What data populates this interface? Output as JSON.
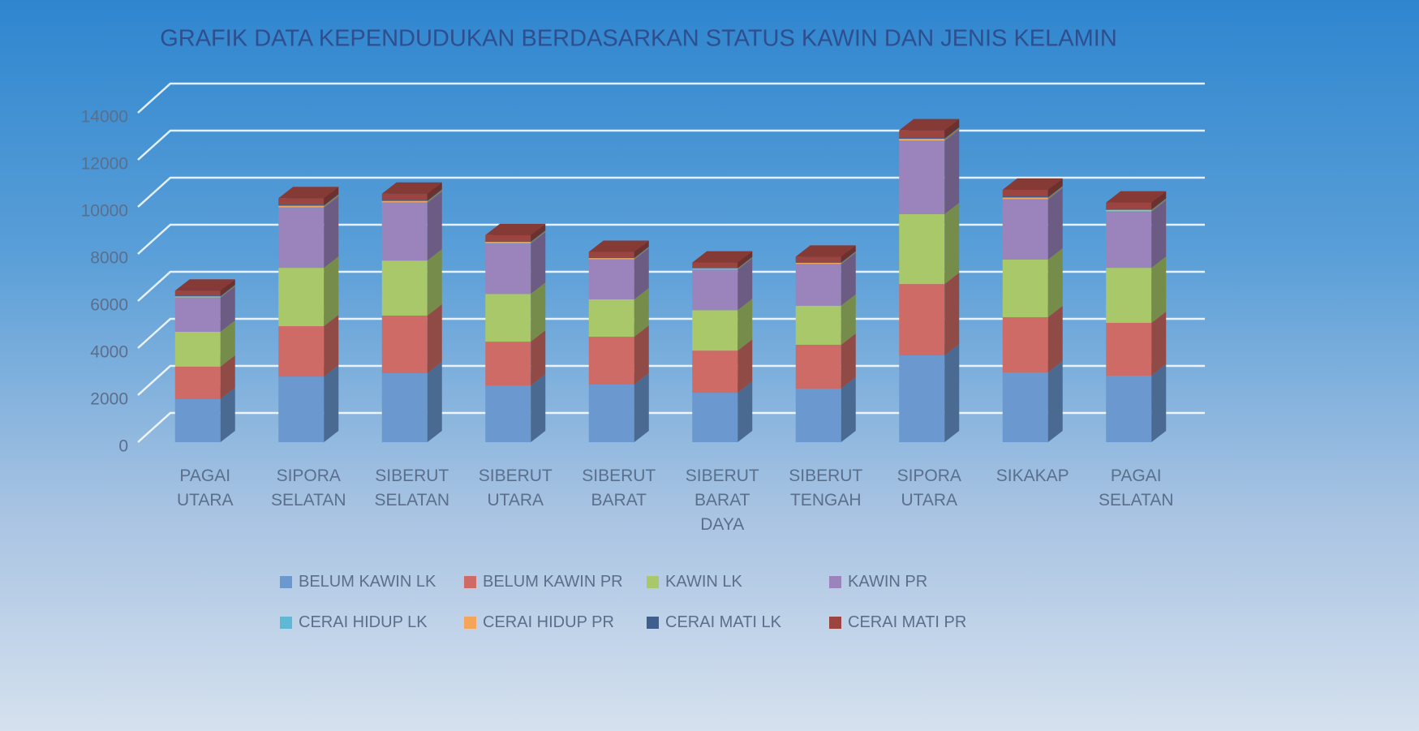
{
  "chart_data": {
    "type": "bar",
    "stacked": true,
    "title": "GRAFIK DATA KEPENDUDUKAN BERDASARKAN STATUS KAWIN DAN JENIS KELAMIN",
    "categories": [
      "PAGAI UTARA",
      "SIPORA SELATAN",
      "SIBERUT SELATAN",
      "SIBERUT UTARA",
      "SIBERUT BARAT",
      "SIBERUT BARAT DAYA",
      "SIBERUT TENGAH",
      "SIPORA UTARA",
      "SIKAKAP",
      "PAGAI SELATAN"
    ],
    "series": [
      {
        "name": "BELUM KAWIN LK",
        "color": "#6a98cf",
        "values": [
          1830,
          2790,
          2930,
          2410,
          2450,
          2100,
          2280,
          3690,
          2970,
          2830
        ]
      },
      {
        "name": "BELUM KAWIN PR",
        "color": "#cf6b66",
        "values": [
          1380,
          2140,
          2450,
          1860,
          2030,
          1790,
          1860,
          3030,
          2340,
          2240
        ]
      },
      {
        "name": "KAWIN LK",
        "color": "#a9c86a",
        "values": [
          1480,
          2480,
          2340,
          2030,
          1590,
          1720,
          1660,
          2970,
          2450,
          2340
        ]
      },
      {
        "name": "KAWIN PR",
        "color": "#9a84bb",
        "values": [
          1450,
          2550,
          2450,
          2140,
          1690,
          1720,
          1760,
          3100,
          2550,
          2380
        ]
      },
      {
        "name": "CERAI HIDUP LK",
        "color": "#5fb8d4",
        "values": [
          20,
          30,
          30,
          25,
          20,
          20,
          20,
          35,
          30,
          30
        ]
      },
      {
        "name": "CERAI HIDUP PR",
        "color": "#f5a55a",
        "values": [
          40,
          60,
          55,
          50,
          45,
          40,
          45,
          70,
          60,
          55
        ]
      },
      {
        "name": "CERAI MATI  LK",
        "color": "#3f5e8c",
        "values": [
          40,
          50,
          45,
          45,
          40,
          35,
          40,
          60,
          50,
          50
        ]
      },
      {
        "name": "CERAI MATI  PR",
        "color": "#9c4440",
        "values": [
          200,
          270,
          260,
          240,
          220,
          210,
          220,
          300,
          280,
          260
        ]
      }
    ],
    "ylim": [
      0,
      14000
    ],
    "yticks": [
      0,
      2000,
      4000,
      6000,
      8000,
      10000,
      12000,
      14000
    ],
    "grid": true
  }
}
